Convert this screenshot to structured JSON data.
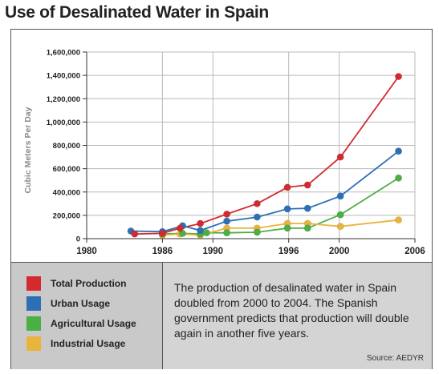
{
  "title": "Use of Desalinated Water in Spain",
  "legend": [
    {
      "label": "Total Production",
      "color": "#d42a2f"
    },
    {
      "label": "Urban Usage",
      "color": "#2b6fb5"
    },
    {
      "label": "Agricultural Usage",
      "color": "#4caf45"
    },
    {
      "label": "Industrial Usage",
      "color": "#e8b43c"
    }
  ],
  "note": "The production of desalinated water in Spain doubled from 2000 to 2004. The Spanish government predicts that production will double again in another five years.",
  "source": "Source: AEDYR",
  "chart_data": {
    "type": "line",
    "title": "Use of Desalinated Water in Spain",
    "ylabel": "Cubic Meters Per Day",
    "xlabel": "",
    "xlim": [
      1980,
      2006
    ],
    "ylim": [
      0,
      1600000
    ],
    "xticks": [
      "1980",
      "1986",
      "1990",
      "1996",
      "2000",
      "2006"
    ],
    "xtick_values": [
      1980,
      1986,
      1990,
      1996,
      2000,
      2006
    ],
    "yticks": [
      "0",
      "200,000",
      "400,000",
      "600,000",
      "800,000",
      "1,000,000",
      "1,200,000",
      "1,400,000",
      "1,600,000"
    ],
    "ytick_values": [
      0,
      200000,
      400000,
      600000,
      800000,
      1000000,
      1200000,
      1400000,
      1600000
    ],
    "grid": true,
    "series": [
      {
        "name": "Total Production",
        "color": "#d42a2f",
        "x": [
          1983.8,
          1986,
          1987.4,
          1989,
          1991.1,
          1993.5,
          1995.9,
          1997.5,
          2000.1,
          2004.7
        ],
        "y": [
          40000,
          45000,
          90000,
          130000,
          210000,
          300000,
          440000,
          460000,
          700000,
          1390000
        ]
      },
      {
        "name": "Urban Usage",
        "color": "#2b6fb5",
        "x": [
          1983.5,
          1986,
          1987.6,
          1989,
          1991.1,
          1993.5,
          1995.9,
          1997.5,
          2000.1,
          2004.7
        ],
        "y": [
          65000,
          60000,
          110000,
          70000,
          150000,
          185000,
          255000,
          260000,
          365000,
          750000
        ],
        "points": [
          [
            1983.5,
            65000
          ],
          [
            1986,
            60000
          ],
          [
            1987.6,
            110000
          ],
          [
            1989,
            70000
          ],
          [
            1991.1,
            150000
          ],
          [
            1993.5,
            185000
          ],
          [
            1995.9,
            255000
          ],
          [
            1997.5,
            260000
          ],
          [
            2000.1,
            365000
          ],
          [
            2004.7,
            750000
          ]
        ]
      },
      {
        "name": "Agricultural Usage",
        "color": "#4caf45",
        "x": [
          1986,
          1987.6,
          1989,
          1989.5,
          1991.1,
          1993.5,
          1995.9,
          1997.5,
          2000.1,
          2004.7
        ],
        "y": [
          40000,
          45000,
          40000,
          50000,
          50000,
          55000,
          90000,
          90000,
          205000,
          520000
        ]
      },
      {
        "name": "Industrial Usage",
        "color": "#e8b43c",
        "x": [
          1986,
          1987.4,
          1989,
          1991.1,
          1993.5,
          1995.9,
          1997.5,
          2000.1,
          2004.7
        ],
        "y": [
          30000,
          40000,
          30000,
          90000,
          90000,
          130000,
          130000,
          105000,
          160000
        ]
      }
    ]
  }
}
